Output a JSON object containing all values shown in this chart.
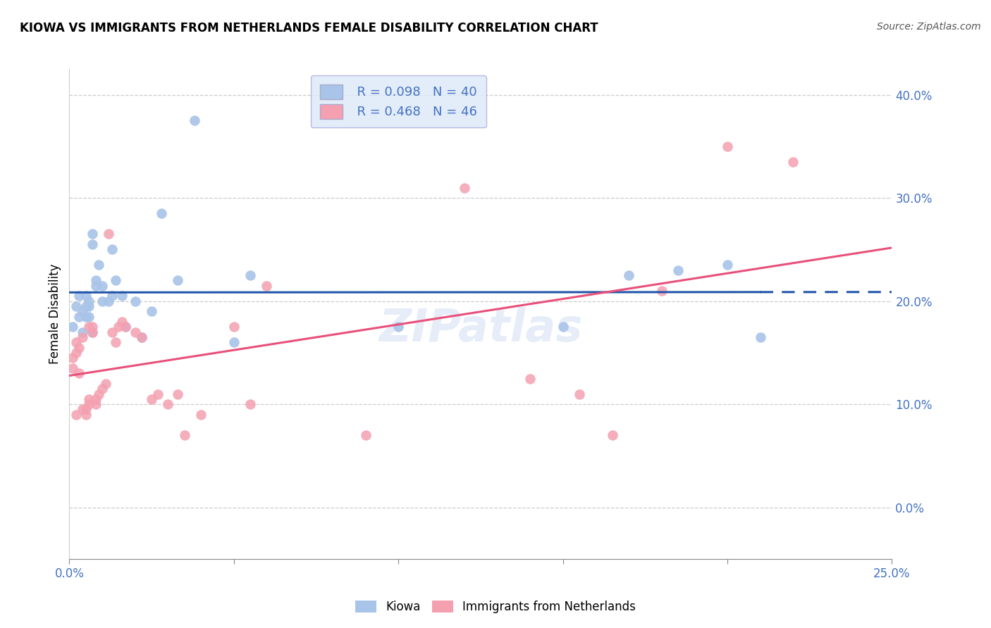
{
  "title": "KIOWA VS IMMIGRANTS FROM NETHERLANDS FEMALE DISABILITY CORRELATION CHART",
  "source": "Source: ZipAtlas.com",
  "ylabel": "Female Disability",
  "x_min": 0.0,
  "x_max": 0.25,
  "y_min": -0.05,
  "y_max": 0.425,
  "kiowa_R": 0.098,
  "kiowa_N": 40,
  "netherlands_R": 0.468,
  "netherlands_N": 46,
  "kiowa_color": "#a8c4e8",
  "netherlands_color": "#f4a0b0",
  "kiowa_line_color": "#2255aa",
  "netherlands_line_color": "#e8507a",
  "legend_box_color": "#dde8f8",
  "watermark": "ZIPatlas",
  "kiowa_x": [
    0.001,
    0.002,
    0.003,
    0.003,
    0.004,
    0.004,
    0.005,
    0.005,
    0.005,
    0.006,
    0.006,
    0.006,
    0.007,
    0.007,
    0.007,
    0.008,
    0.008,
    0.009,
    0.01,
    0.01,
    0.012,
    0.013,
    0.013,
    0.014,
    0.016,
    0.017,
    0.02,
    0.022,
    0.025,
    0.028,
    0.033,
    0.038,
    0.05,
    0.055,
    0.1,
    0.15,
    0.17,
    0.185,
    0.2,
    0.21
  ],
  "kiowa_y": [
    0.175,
    0.195,
    0.185,
    0.205,
    0.17,
    0.19,
    0.195,
    0.205,
    0.185,
    0.185,
    0.195,
    0.2,
    0.255,
    0.265,
    0.17,
    0.215,
    0.22,
    0.235,
    0.2,
    0.215,
    0.2,
    0.205,
    0.25,
    0.22,
    0.205,
    0.175,
    0.2,
    0.165,
    0.19,
    0.285,
    0.22,
    0.375,
    0.16,
    0.225,
    0.175,
    0.175,
    0.225,
    0.23,
    0.235,
    0.165
  ],
  "netherlands_x": [
    0.001,
    0.001,
    0.002,
    0.002,
    0.002,
    0.003,
    0.003,
    0.004,
    0.004,
    0.005,
    0.005,
    0.006,
    0.006,
    0.006,
    0.007,
    0.007,
    0.008,
    0.008,
    0.009,
    0.01,
    0.011,
    0.012,
    0.013,
    0.014,
    0.015,
    0.016,
    0.017,
    0.02,
    0.022,
    0.025,
    0.027,
    0.03,
    0.033,
    0.035,
    0.04,
    0.05,
    0.055,
    0.06,
    0.09,
    0.12,
    0.14,
    0.155,
    0.165,
    0.18,
    0.2,
    0.22
  ],
  "netherlands_y": [
    0.135,
    0.145,
    0.09,
    0.15,
    0.16,
    0.13,
    0.155,
    0.095,
    0.165,
    0.09,
    0.095,
    0.1,
    0.105,
    0.175,
    0.17,
    0.175,
    0.1,
    0.105,
    0.11,
    0.115,
    0.12,
    0.265,
    0.17,
    0.16,
    0.175,
    0.18,
    0.175,
    0.17,
    0.165,
    0.105,
    0.11,
    0.1,
    0.11,
    0.07,
    0.09,
    0.175,
    0.1,
    0.215,
    0.07,
    0.31,
    0.125,
    0.11,
    0.07,
    0.21,
    0.35,
    0.335
  ]
}
